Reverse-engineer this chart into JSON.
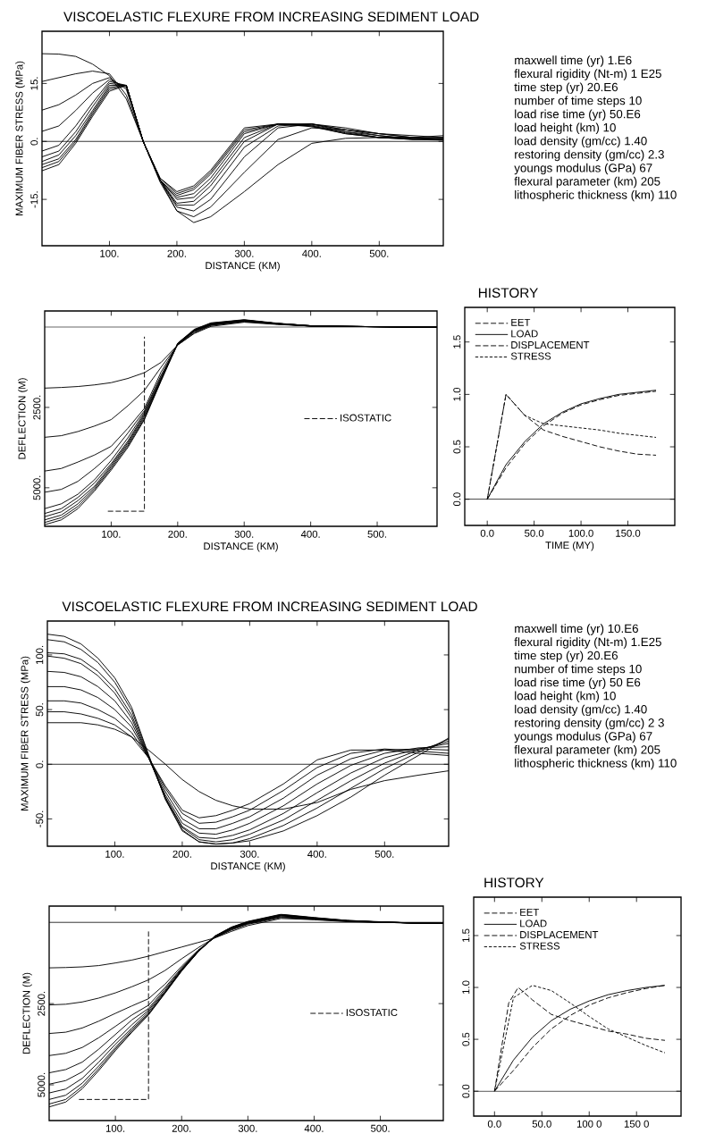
{
  "chart_data": [
    {
      "type": "line",
      "title": "VISCOELASTIC FLEXURE FROM INCREASING SEDIMENT LOAD",
      "xlabel": "DISTANCE (KM)",
      "ylabel": "MAXIMUM FIBER STRESS (MPa)",
      "x": [
        0,
        25,
        50,
        75,
        100,
        125,
        150,
        175,
        200,
        225,
        250,
        300,
        350,
        400,
        450,
        500,
        550,
        595
      ],
      "series": [
        {
          "color": "#000000",
          "values": [
            22.7,
            22.6,
            22,
            20,
            17,
            11,
            0,
            -10,
            -18,
            -21,
            -19.5,
            -13,
            -6,
            -0.5,
            0.8,
            1,
            1,
            1
          ]
        },
        {
          "color": "#000000",
          "values": [
            15.5,
            16.5,
            17.5,
            18.2,
            17.5,
            12,
            0,
            -10.5,
            -18,
            -19.5,
            -17,
            -8,
            0.5,
            3.5,
            3,
            2,
            1.5,
            1
          ]
        },
        {
          "color": "#000000",
          "values": [
            8.1,
            9.5,
            12,
            15,
            16.5,
            13.5,
            0,
            -10,
            -17,
            -18,
            -15,
            -4,
            3.5,
            4.5,
            3.5,
            2,
            1,
            0.5
          ]
        },
        {
          "color": "#000000",
          "values": [
            2.6,
            4,
            8,
            12.5,
            16,
            14,
            0,
            -10,
            -16.5,
            -16.5,
            -13,
            -1.5,
            4,
            4.5,
            3,
            2,
            1,
            0.5
          ]
        },
        {
          "color": "#000000",
          "values": [
            -2.5,
            -1,
            4,
            10,
            15.5,
            14.5,
            0,
            -10,
            -16,
            -15.5,
            -11.5,
            0,
            4.5,
            4.5,
            3,
            1.5,
            0.8,
            0.5
          ]
        },
        {
          "color": "#000000",
          "values": [
            -4,
            -2.5,
            2.5,
            9,
            15,
            14.5,
            0,
            -10,
            -15,
            -14.5,
            -10.5,
            1,
            4.5,
            4.5,
            2.5,
            1.5,
            0.5,
            0.3
          ]
        },
        {
          "color": "#000000",
          "values": [
            -5.2,
            -3.5,
            1.5,
            8,
            14.5,
            14.5,
            0,
            -10,
            -14.5,
            -13.5,
            -9.5,
            2,
            4.5,
            4.2,
            2.5,
            1,
            0.5,
            0.5
          ]
        },
        {
          "color": "#000000",
          "values": [
            -6,
            -4.5,
            0.5,
            7.5,
            14,
            14.5,
            0,
            -10,
            -14,
            -12.5,
            -8.5,
            2.5,
            4.5,
            4,
            2.2,
            1,
            0.5,
            0.8
          ]
        },
        {
          "color": "#000000",
          "values": [
            -6.8,
            -5.2,
            0,
            7,
            13.5,
            14.5,
            0,
            -9.5,
            -13.5,
            -12,
            -8,
            3,
            4.5,
            4,
            2,
            1,
            0.8,
            1
          ]
        },
        {
          "color": "#000000",
          "values": [
            -7.6,
            -6,
            -0.5,
            6.5,
            13,
            14.5,
            0,
            -9.5,
            -13,
            -11.5,
            -7.5,
            3.5,
            4.5,
            3.8,
            2,
            1,
            1,
            1.5
          ]
        }
      ],
      "xlim": [
        0,
        595
      ],
      "ylim": [
        -27,
        28.5
      ],
      "xticks": [
        {
          "value": 100,
          "label": "100."
        },
        {
          "value": 200,
          "label": "200."
        },
        {
          "value": 300,
          "label": "300."
        },
        {
          "value": 400,
          "label": "400."
        },
        {
          "value": 500,
          "label": "500."
        }
      ],
      "yticks": [
        {
          "value": -15,
          "label": "-15."
        },
        {
          "value": 0,
          "label": "0."
        },
        {
          "value": 15,
          "label": "15."
        }
      ],
      "ref_lines": [
        {
          "axis": "y",
          "value": 0
        }
      ],
      "line_style": "solid"
    },
    {
      "type": "other",
      "annotations": [
        "maxwell time (yr) 1.E6",
        "flexural rigidity (Nt-m) 1 E25",
        "time step (yr) 20.E6",
        "number of time steps 10",
        "load rise time (yr) 50.E6",
        "load height (km) 10",
        "load density (gm/cc) 1.40",
        "restoring density (gm/cc) 2.3",
        "youngs modulus (GPa) 67",
        "flexural parameter (km) 205",
        "lithospheric thickness (km) 110"
      ]
    },
    {
      "type": "line",
      "xlabel": "DISTANCE (KM)",
      "ylabel": "DEFLECTION (M)",
      "x": [
        0,
        25,
        50,
        75,
        100,
        125,
        150,
        175,
        200,
        225,
        250,
        300,
        350,
        400,
        450,
        500,
        550,
        590
      ],
      "series": [
        {
          "color": "#000000",
          "values": [
            1900,
            1880,
            1850,
            1800,
            1730,
            1600,
            1420,
            1100,
            560,
            200,
            -20,
            -150,
            -80,
            -30,
            -20,
            -10,
            0,
            0
          ]
        },
        {
          "color": "#000000",
          "values": [
            3430,
            3380,
            3250,
            3080,
            2880,
            2450,
            1970,
            1250,
            560,
            180,
            -50,
            -170,
            -90,
            -30,
            -20,
            -10,
            0,
            0
          ]
        },
        {
          "color": "#000000",
          "values": [
            4480,
            4400,
            4200,
            3980,
            3710,
            3150,
            2530,
            1400,
            540,
            150,
            -60,
            -180,
            -90,
            -30,
            -20,
            -10,
            0,
            0
          ]
        },
        {
          "color": "#000000",
          "values": [
            5140,
            5050,
            4800,
            4400,
            3950,
            3300,
            2600,
            1500,
            540,
            130,
            -70,
            -190,
            -100,
            -30,
            -20,
            -10,
            0,
            0
          ]
        },
        {
          "color": "#000000",
          "values": [
            5650,
            5500,
            5200,
            4750,
            4150,
            3450,
            2650,
            1550,
            530,
            120,
            -80,
            -200,
            -100,
            -30,
            -20,
            -10,
            0,
            0
          ]
        },
        {
          "color": "#000000",
          "values": [
            5800,
            5650,
            5300,
            4850,
            4250,
            3550,
            2700,
            1600,
            530,
            110,
            -90,
            -210,
            -110,
            -40,
            -20,
            -10,
            0,
            0
          ]
        },
        {
          "color": "#000000",
          "values": [
            5900,
            5750,
            5400,
            4950,
            4300,
            3600,
            2750,
            1620,
            520,
            100,
            -100,
            -210,
            -110,
            -40,
            -20,
            -10,
            0,
            0
          ]
        },
        {
          "color": "#000000",
          "values": [
            6000,
            5850,
            5500,
            5000,
            4350,
            3650,
            2800,
            1640,
            520,
            90,
            -110,
            -220,
            -110,
            -40,
            -20,
            -10,
            0,
            0
          ]
        },
        {
          "color": "#000000",
          "values": [
            6080,
            5930,
            5580,
            5050,
            4400,
            3700,
            2850,
            1660,
            510,
            80,
            -120,
            -220,
            -110,
            -40,
            -20,
            -10,
            0,
            0
          ]
        },
        {
          "color": "#000000",
          "values": [
            6150,
            6000,
            5650,
            5100,
            4450,
            3750,
            2880,
            1680,
            500,
            70,
            -130,
            -230,
            -120,
            -40,
            -20,
            -10,
            0,
            0
          ]
        },
        {
          "name": "ISOSTATIC",
          "color": "#000000",
          "line_style": "dashed",
          "x": [
            95,
            150,
            150
          ],
          "values": [
            5730,
            5730,
            300
          ]
        }
      ],
      "xlim": [
        0,
        590
      ],
      "ylim": [
        6200,
        -500
      ],
      "xticks": [
        {
          "value": 100,
          "label": "100."
        },
        {
          "value": 200,
          "label": "200."
        },
        {
          "value": 300,
          "label": "300."
        },
        {
          "value": 400,
          "label": "400."
        },
        {
          "value": 500,
          "label": "500."
        }
      ],
      "yticks": [
        {
          "value": 2500,
          "label": "2500."
        },
        {
          "value": 5000,
          "label": "5000."
        }
      ],
      "ref_lines": [
        {
          "axis": "y",
          "value": 0
        }
      ],
      "line_style": "solid",
      "legend": "right"
    },
    {
      "type": "line",
      "title": "HISTORY",
      "xlabel": "TIME (MY)",
      "x": [
        0,
        20,
        40,
        60,
        80,
        100,
        120,
        140,
        160,
        180
      ],
      "series": [
        {
          "name": "EET",
          "color": "#000000",
          "line_style": "dashed",
          "values": [
            0,
            1.0,
            0.8,
            0.66,
            0.6,
            0.55,
            0.5,
            0.46,
            0.43,
            0.42
          ]
        },
        {
          "name": "LOAD",
          "color": "#000000",
          "line_style": "solid",
          "values": [
            0,
            0.33,
            0.55,
            0.72,
            0.83,
            0.91,
            0.96,
            1.0,
            1.02,
            1.04
          ]
        },
        {
          "name": "DISPLACEMENT",
          "color": "#000000",
          "line_style": "dashed",
          "values": [
            0,
            0.3,
            0.53,
            0.7,
            0.82,
            0.9,
            0.95,
            0.99,
            1.01,
            1.03
          ]
        },
        {
          "name": "STRESS",
          "color": "#000000",
          "line_style": "dotted",
          "values": [
            0,
            1.0,
            0.8,
            0.72,
            0.7,
            0.68,
            0.66,
            0.63,
            0.61,
            0.59
          ]
        }
      ],
      "xlim": [
        -24,
        200
      ],
      "ylim": [
        -0.25,
        1.83
      ],
      "xticks": [
        {
          "value": 0,
          "label": "0.0"
        },
        {
          "value": 50,
          "label": "50.0"
        },
        {
          "value": 100,
          "label": "100.0"
        },
        {
          "value": 150,
          "label": "150.0"
        }
      ],
      "yticks": [
        {
          "value": 0,
          "label": "0.0"
        },
        {
          "value": 0.5,
          "label": "0.5"
        },
        {
          "value": 1,
          "label": "1.0"
        },
        {
          "value": 1.5,
          "label": "1.5"
        }
      ],
      "ref_lines": [
        {
          "axis": "y",
          "value": 0
        }
      ],
      "legend": "top left"
    },
    {
      "type": "line",
      "title": "VISCOELASTIC FLEXURE FROM INCREASING SEDIMENT LOAD",
      "xlabel": "DISTANCE (KM)",
      "ylabel": "MAXIMUM FIBER STRESS (MPa)",
      "x": [
        0,
        25,
        50,
        75,
        100,
        125,
        150,
        175,
        200,
        225,
        250,
        275,
        300,
        350,
        400,
        450,
        500,
        550,
        595
      ],
      "series": [
        {
          "color": "#000000",
          "values": [
            38,
            38,
            38,
            36,
            32,
            25,
            13,
            0,
            -14,
            -25,
            -33,
            -38,
            -41,
            -41,
            -35,
            -23,
            -15,
            -10,
            -6
          ]
        },
        {
          "color": "#000000",
          "values": [
            48,
            48,
            46,
            42,
            36,
            25,
            6,
            -20,
            -42,
            -49,
            -47,
            -42,
            -36,
            -18,
            4,
            13,
            13,
            10,
            8
          ]
        },
        {
          "color": "#000000",
          "values": [
            58,
            58,
            56,
            50,
            42,
            29,
            6,
            -22,
            -45,
            -54,
            -53,
            -48,
            -42,
            -24,
            -3,
            10,
            14,
            12,
            10
          ]
        },
        {
          "color": "#000000",
          "values": [
            71,
            71,
            68,
            61,
            50,
            34,
            6,
            -25,
            -50,
            -59,
            -59,
            -54,
            -48,
            -31,
            -10,
            5,
            13,
            14,
            13
          ]
        },
        {
          "color": "#000000",
          "values": [
            85,
            84,
            80,
            71,
            58,
            38,
            6,
            -28,
            -54,
            -63,
            -64,
            -60,
            -54,
            -38,
            -18,
            -1,
            10,
            15,
            16
          ]
        },
        {
          "color": "#000000",
          "values": [
            99,
            97,
            92,
            81,
            65,
            42,
            6,
            -30,
            -57,
            -67,
            -68,
            -65,
            -60,
            -45,
            -26,
            -8,
            6,
            14,
            19
          ]
        },
        {
          "color": "#000000",
          "values": [
            102,
            101,
            96,
            85,
            69,
            45,
            7,
            -31,
            -58,
            -69,
            -71,
            -69,
            -64,
            -51,
            -33,
            -15,
            1,
            13,
            21
          ]
        },
        {
          "color": "#000000",
          "values": [
            114,
            112,
            105,
            93,
            75,
            49,
            8,
            -32,
            -60,
            -71,
            -73,
            -72,
            -68,
            -56,
            -40,
            -22,
            -4,
            11,
            23
          ]
        },
        {
          "color": "#000000",
          "values": [
            119,
            117,
            110,
            97,
            79,
            52,
            9,
            -32,
            -61,
            -71,
            -73,
            -72,
            -70,
            -61,
            -47,
            -30,
            -10,
            8,
            24
          ]
        }
      ],
      "xlim": [
        0,
        595
      ],
      "ylim": [
        -75,
        131
      ],
      "xticks": [
        {
          "value": 100,
          "label": "100."
        },
        {
          "value": 200,
          "label": "200."
        },
        {
          "value": 300,
          "label": "300."
        },
        {
          "value": 400,
          "label": "400."
        },
        {
          "value": 500,
          "label": "500."
        }
      ],
      "yticks": [
        {
          "value": -50,
          "label": "-50."
        },
        {
          "value": 0,
          "label": "0."
        },
        {
          "value": 50,
          "label": "50."
        },
        {
          "value": 100,
          "label": "100."
        }
      ],
      "ref_lines": [
        {
          "axis": "y",
          "value": 0
        }
      ],
      "line_style": "solid"
    },
    {
      "type": "other",
      "annotations": [
        "maxwell time (yr) 10.E6",
        "flexural rigidity (Nt-m) 1.E25",
        "time step (yr) 20.E6",
        "number of time steps 10",
        "load rise time (yr) 50 E6",
        "load height (km) 10",
        "load density (gm/cc) 1.40",
        "restoring density (gm/cc) 2 3",
        "youngs modulus (GPa) 67",
        "flexural parameter (km) 205",
        "lithospheric thickness (km) 110"
      ]
    },
    {
      "type": "line",
      "ylabel": "DEFLECTION (M)",
      "x": [
        0,
        25,
        50,
        75,
        100,
        125,
        150,
        175,
        200,
        225,
        250,
        275,
        300,
        350,
        400,
        450,
        500,
        550,
        595
      ],
      "series": [
        {
          "color": "#000000",
          "values": [
            1400,
            1390,
            1370,
            1330,
            1250,
            1160,
            1040,
            900,
            760,
            620,
            480,
            280,
            100,
            -120,
            -80,
            -20,
            0,
            20,
            30
          ]
        },
        {
          "color": "#000000",
          "values": [
            2540,
            2520,
            2450,
            2330,
            2170,
            1980,
            1770,
            1480,
            1120,
            780,
            470,
            240,
            60,
            -150,
            -90,
            -30,
            0,
            20,
            30
          ]
        },
        {
          "color": "#000000",
          "values": [
            3420,
            3380,
            3250,
            3040,
            2800,
            2570,
            2350,
            1900,
            1350,
            850,
            470,
            220,
            40,
            -170,
            -100,
            -40,
            0,
            20,
            30
          ]
        },
        {
          "color": "#000000",
          "values": [
            4100,
            4030,
            3850,
            3550,
            3200,
            2850,
            2550,
            2000,
            1400,
            870,
            460,
            200,
            30,
            -180,
            -110,
            -40,
            -10,
            20,
            30
          ]
        },
        {
          "color": "#000000",
          "values": [
            4630,
            4530,
            4300,
            3900,
            3450,
            3000,
            2650,
            2050,
            1430,
            880,
            450,
            190,
            20,
            -200,
            -120,
            -40,
            -10,
            20,
            30
          ]
        },
        {
          "color": "#000000",
          "values": [
            4980,
            4870,
            4600,
            4150,
            3650,
            3150,
            2700,
            2100,
            1450,
            890,
            440,
            180,
            10,
            -210,
            -120,
            -50,
            -10,
            20,
            30
          ]
        },
        {
          "color": "#000000",
          "values": [
            5250,
            5130,
            4800,
            4300,
            3750,
            3250,
            2750,
            2130,
            1470,
            900,
            440,
            170,
            0,
            -220,
            -130,
            -50,
            -10,
            20,
            30
          ]
        },
        {
          "color": "#000000",
          "values": [
            5450,
            5320,
            4950,
            4420,
            3850,
            3300,
            2800,
            2150,
            1480,
            900,
            430,
            160,
            -10,
            -230,
            -140,
            -50,
            -10,
            20,
            30
          ]
        },
        {
          "color": "#000000",
          "values": [
            5590,
            5450,
            5050,
            4500,
            3900,
            3350,
            2830,
            2170,
            1490,
            900,
            430,
            150,
            -20,
            -240,
            -140,
            -60,
            -10,
            20,
            30
          ]
        },
        {
          "color": "#000000",
          "values": [
            5680,
            5530,
            5120,
            4560,
            3950,
            3380,
            2850,
            2180,
            1500,
            910,
            420,
            150,
            -30,
            -250,
            -150,
            -60,
            -20,
            20,
            30
          ]
        },
        {
          "name": "ISOSTATIC",
          "color": "#000000",
          "line_style": "dashed",
          "x": [
            45,
            150,
            150
          ],
          "values": [
            5450,
            5450,
            280
          ]
        }
      ],
      "xlim": [
        0,
        595
      ],
      "ylim": [
        6100,
        -500
      ],
      "xticks": [
        {
          "value": 100,
          "label": "100."
        },
        {
          "value": 200,
          "label": "200."
        },
        {
          "value": 300,
          "label": "300."
        },
        {
          "value": 400,
          "label": "400."
        },
        {
          "value": 500,
          "label": "500."
        }
      ],
      "yticks": [
        {
          "value": 2500,
          "label": "2500."
        },
        {
          "value": 5000,
          "label": "5000."
        }
      ],
      "ref_lines": [
        {
          "axis": "y",
          "value": 0
        }
      ],
      "line_style": "solid",
      "legend": "right"
    },
    {
      "type": "line",
      "title": "HISTORY",
      "x": [
        0,
        20,
        40,
        60,
        80,
        100,
        120,
        140,
        160,
        180
      ],
      "series": [
        {
          "name": "EET",
          "color": "#000000",
          "line_style": "dashed",
          "x": [
            0,
            15,
            25,
            40,
            60,
            80,
            100,
            120,
            140,
            160,
            180
          ],
          "values": [
            0,
            0.85,
            1.0,
            0.88,
            0.74,
            0.68,
            0.63,
            0.58,
            0.55,
            0.51,
            0.49
          ]
        },
        {
          "name": "LOAD",
          "color": "#000000",
          "line_style": "solid",
          "values": [
            0,
            0.3,
            0.52,
            0.68,
            0.79,
            0.87,
            0.93,
            0.97,
            1.0,
            1.02
          ]
        },
        {
          "name": "DISPLACEMENT",
          "color": "#000000",
          "line_style": "dashed",
          "values": [
            0,
            0.2,
            0.42,
            0.6,
            0.73,
            0.83,
            0.9,
            0.95,
            0.99,
            1.02
          ]
        },
        {
          "name": "STRESS",
          "color": "#000000",
          "line_style": "dotted",
          "values": [
            0,
            0.9,
            1.02,
            0.97,
            0.85,
            0.72,
            0.6,
            0.52,
            0.44,
            0.37
          ]
        }
      ],
      "xlim": [
        -22,
        197
      ],
      "ylim": [
        -0.24,
        1.87
      ],
      "xticks": [
        {
          "value": 0,
          "label": "0.0"
        },
        {
          "value": 50,
          "label": "50.0"
        },
        {
          "value": 100,
          "label": "100 0"
        },
        {
          "value": 150,
          "label": "150 0"
        }
      ],
      "yticks": [
        {
          "value": 0,
          "label": "0.0"
        },
        {
          "value": 0.5,
          "label": "0.5"
        },
        {
          "value": 1,
          "label": "1.0"
        },
        {
          "value": 1.5,
          "label": "1.5"
        }
      ],
      "ref_lines": [
        {
          "axis": "y",
          "value": 0
        }
      ],
      "legend": "top left"
    }
  ]
}
